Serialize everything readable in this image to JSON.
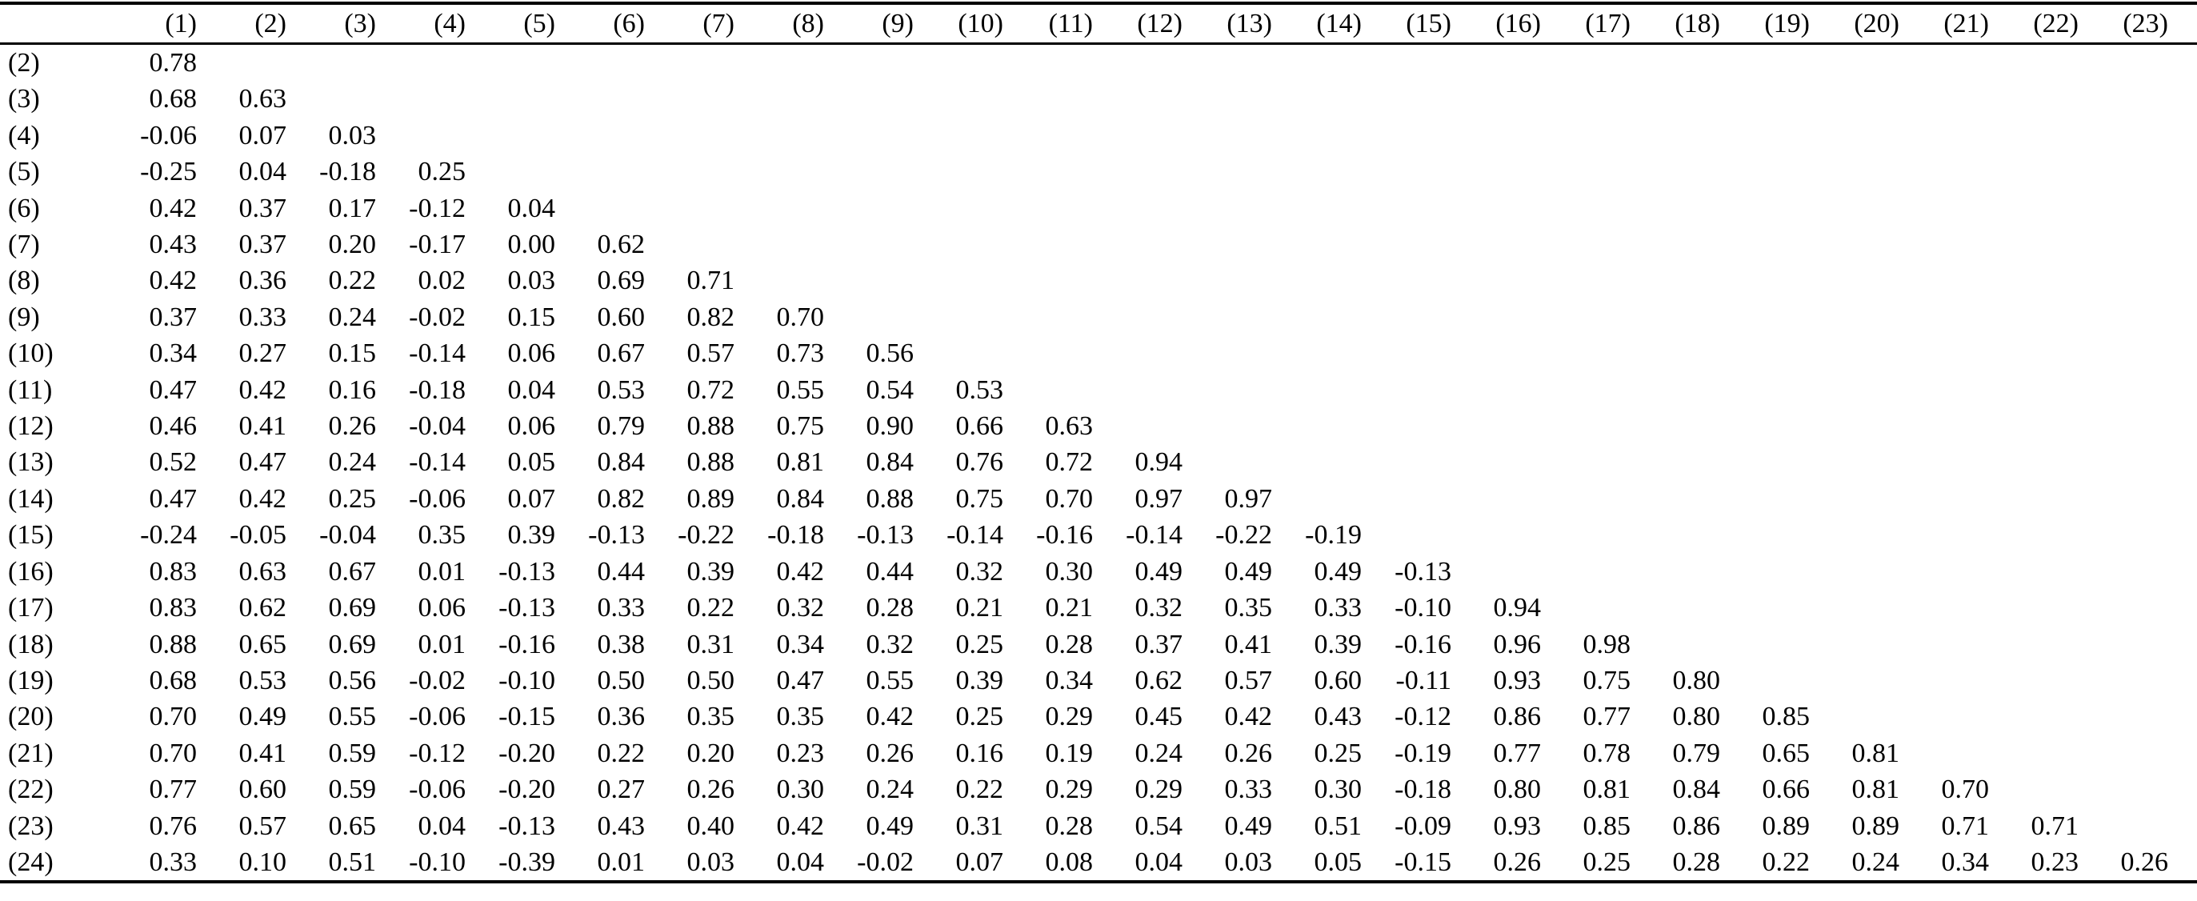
{
  "table": {
    "column_headers": [
      "(1)",
      "(2)",
      "(3)",
      "(4)",
      "(5)",
      "(6)",
      "(7)",
      "(8)",
      "(9)",
      "(10)",
      "(11)",
      "(12)",
      "(13)",
      "(14)",
      "(15)",
      "(16)",
      "(17)",
      "(18)",
      "(19)",
      "(20)",
      "(21)",
      "(22)",
      "(23)"
    ],
    "rows": [
      {
        "label": "(2)",
        "values": [
          "0.78"
        ]
      },
      {
        "label": "(3)",
        "values": [
          "0.68",
          "0.63"
        ]
      },
      {
        "label": "(4)",
        "values": [
          "-0.06",
          "0.07",
          "0.03"
        ]
      },
      {
        "label": "(5)",
        "values": [
          "-0.25",
          "0.04",
          "-0.18",
          "0.25"
        ]
      },
      {
        "label": "(6)",
        "values": [
          "0.42",
          "0.37",
          "0.17",
          "-0.12",
          "0.04"
        ]
      },
      {
        "label": "(7)",
        "values": [
          "0.43",
          "0.37",
          "0.20",
          "-0.17",
          "0.00",
          "0.62"
        ]
      },
      {
        "label": "(8)",
        "values": [
          "0.42",
          "0.36",
          "0.22",
          "0.02",
          "0.03",
          "0.69",
          "0.71"
        ]
      },
      {
        "label": "(9)",
        "values": [
          "0.37",
          "0.33",
          "0.24",
          "-0.02",
          "0.15",
          "0.60",
          "0.82",
          "0.70"
        ]
      },
      {
        "label": "(10)",
        "values": [
          "0.34",
          "0.27",
          "0.15",
          "-0.14",
          "0.06",
          "0.67",
          "0.57",
          "0.73",
          "0.56"
        ]
      },
      {
        "label": "(11)",
        "values": [
          "0.47",
          "0.42",
          "0.16",
          "-0.18",
          "0.04",
          "0.53",
          "0.72",
          "0.55",
          "0.54",
          "0.53"
        ]
      },
      {
        "label": "(12)",
        "values": [
          "0.46",
          "0.41",
          "0.26",
          "-0.04",
          "0.06",
          "0.79",
          "0.88",
          "0.75",
          "0.90",
          "0.66",
          "0.63"
        ]
      },
      {
        "label": "(13)",
        "values": [
          "0.52",
          "0.47",
          "0.24",
          "-0.14",
          "0.05",
          "0.84",
          "0.88",
          "0.81",
          "0.84",
          "0.76",
          "0.72",
          "0.94"
        ]
      },
      {
        "label": "(14)",
        "values": [
          "0.47",
          "0.42",
          "0.25",
          "-0.06",
          "0.07",
          "0.82",
          "0.89",
          "0.84",
          "0.88",
          "0.75",
          "0.70",
          "0.97",
          "0.97"
        ]
      },
      {
        "label": "(15)",
        "values": [
          "-0.24",
          "-0.05",
          "-0.04",
          "0.35",
          "0.39",
          "-0.13",
          "-0.22",
          "-0.18",
          "-0.13",
          "-0.14",
          "-0.16",
          "-0.14",
          "-0.22",
          "-0.19"
        ]
      },
      {
        "label": "(16)",
        "values": [
          "0.83",
          "0.63",
          "0.67",
          "0.01",
          "-0.13",
          "0.44",
          "0.39",
          "0.42",
          "0.44",
          "0.32",
          "0.30",
          "0.49",
          "0.49",
          "0.49",
          "-0.13"
        ]
      },
      {
        "label": "(17)",
        "values": [
          "0.83",
          "0.62",
          "0.69",
          "0.06",
          "-0.13",
          "0.33",
          "0.22",
          "0.32",
          "0.28",
          "0.21",
          "0.21",
          "0.32",
          "0.35",
          "0.33",
          "-0.10",
          "0.94"
        ]
      },
      {
        "label": "(18)",
        "values": [
          "0.88",
          "0.65",
          "0.69",
          "0.01",
          "-0.16",
          "0.38",
          "0.31",
          "0.34",
          "0.32",
          "0.25",
          "0.28",
          "0.37",
          "0.41",
          "0.39",
          "-0.16",
          "0.96",
          "0.98"
        ]
      },
      {
        "label": "(19)",
        "values": [
          "0.68",
          "0.53",
          "0.56",
          "-0.02",
          "-0.10",
          "0.50",
          "0.50",
          "0.47",
          "0.55",
          "0.39",
          "0.34",
          "0.62",
          "0.57",
          "0.60",
          "-0.11",
          "0.93",
          "0.75",
          "0.80"
        ]
      },
      {
        "label": "(20)",
        "values": [
          "0.70",
          "0.49",
          "0.55",
          "-0.06",
          "-0.15",
          "0.36",
          "0.35",
          "0.35",
          "0.42",
          "0.25",
          "0.29",
          "0.45",
          "0.42",
          "0.43",
          "-0.12",
          "0.86",
          "0.77",
          "0.80",
          "0.85"
        ]
      },
      {
        "label": "(21)",
        "values": [
          "0.70",
          "0.41",
          "0.59",
          "-0.12",
          "-0.20",
          "0.22",
          "0.20",
          "0.23",
          "0.26",
          "0.16",
          "0.19",
          "0.24",
          "0.26",
          "0.25",
          "-0.19",
          "0.77",
          "0.78",
          "0.79",
          "0.65",
          "0.81"
        ]
      },
      {
        "label": "(22)",
        "values": [
          "0.77",
          "0.60",
          "0.59",
          "-0.06",
          "-0.20",
          "0.27",
          "0.26",
          "0.30",
          "0.24",
          "0.22",
          "0.29",
          "0.29",
          "0.33",
          "0.30",
          "-0.18",
          "0.80",
          "0.81",
          "0.84",
          "0.66",
          "0.81",
          "0.70"
        ]
      },
      {
        "label": "(23)",
        "values": [
          "0.76",
          "0.57",
          "0.65",
          "0.04",
          "-0.13",
          "0.43",
          "0.40",
          "0.42",
          "0.49",
          "0.31",
          "0.28",
          "0.54",
          "0.49",
          "0.51",
          "-0.09",
          "0.93",
          "0.85",
          "0.86",
          "0.89",
          "0.89",
          "0.71",
          "0.71"
        ]
      },
      {
        "label": "(24)",
        "values": [
          "0.33",
          "0.10",
          "0.51",
          "-0.10",
          "-0.39",
          "0.01",
          "0.03",
          "0.04",
          "-0.02",
          "0.07",
          "0.08",
          "0.04",
          "0.03",
          "0.05",
          "-0.15",
          "0.26",
          "0.25",
          "0.28",
          "0.22",
          "0.24",
          "0.34",
          "0.23",
          "0.26"
        ]
      }
    ]
  }
}
